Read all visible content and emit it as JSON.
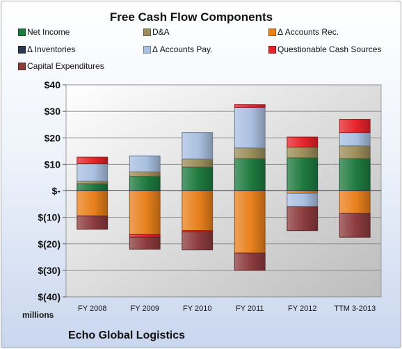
{
  "chart_data": {
    "type": "bar",
    "stacked": true,
    "title": "Free Cash Flow Components",
    "categories": [
      "FY 2008",
      "FY 2009",
      "FY 2010",
      "FY 2011",
      "FY 2012",
      "TTM 3-2013"
    ],
    "y_tick_labels": [
      "$40",
      "$30",
      "$20",
      "$10",
      "$-",
      "$(10)",
      "$(20)",
      "$(30)",
      "$(40)"
    ],
    "y_tick_values": [
      40,
      30,
      20,
      10,
      0,
      -10,
      -20,
      -30,
      -40
    ],
    "ylim": [
      -40,
      40
    ],
    "ylabel": "millions",
    "grid": true,
    "legend_position": "top",
    "series": [
      {
        "name": "Net Income",
        "color": "#1f7a3f",
        "values": [
          2.7,
          5.5,
          9.0,
          12.2,
          12.5,
          12.2
        ]
      },
      {
        "name": "D&A",
        "color": "#9c8d5a",
        "values": [
          1.0,
          1.7,
          3.0,
          4.0,
          4.0,
          4.8
        ]
      },
      {
        "name": "Δ Accounts Rec.",
        "color": "#e8801c",
        "values": [
          -9.5,
          -16.5,
          -15.0,
          -23.5,
          -1.0,
          -8.5
        ]
      },
      {
        "name": "Δ Inventories",
        "color": "#2b3a4f",
        "values": [
          0,
          0,
          0,
          0,
          0,
          0
        ]
      },
      {
        "name": "Δ Accounts Pay.",
        "color": "#a9c0e0",
        "values": [
          6.5,
          6.0,
          10.0,
          15.3,
          -5.0,
          5.0
        ]
      },
      {
        "name": "Questionable Cash Sources",
        "color": "#e6242a",
        "values": [
          2.5,
          -1.0,
          -0.5,
          1.0,
          3.8,
          5.0
        ]
      },
      {
        "name": "Capital Expenditures",
        "color": "#8c3b3d",
        "values": [
          -5.0,
          -4.5,
          -6.8,
          -6.5,
          -9.0,
          -9.0
        ]
      }
    ]
  },
  "company": "Echo Global Logistics"
}
